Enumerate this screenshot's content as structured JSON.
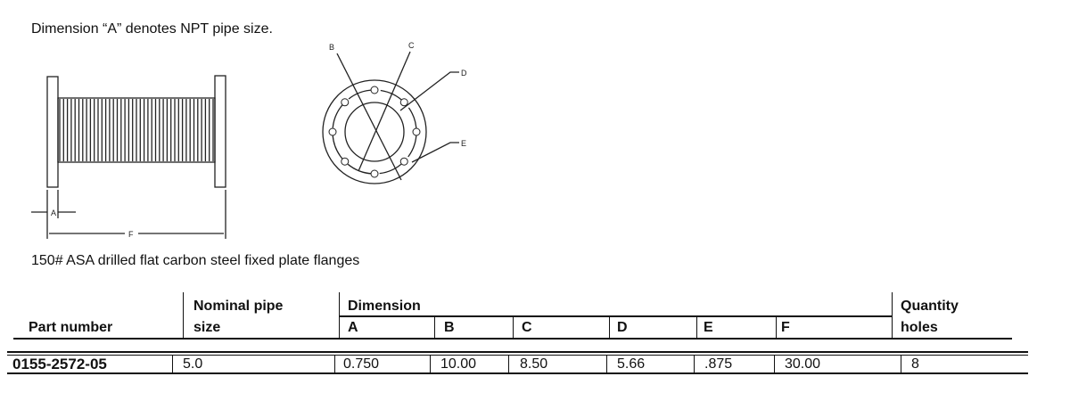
{
  "note": "Dimension “A” denotes NPT pipe size.",
  "drawing_labels": {
    "A": "A",
    "B": "B",
    "C": "C",
    "D": "D",
    "E": "E",
    "F": "F"
  },
  "caption": "150# ASA drilled flat carbon steel fixed plate flanges",
  "table": {
    "headers": {
      "part_number": "Part number",
      "nominal_line1": "Nominal pipe",
      "nominal_line2": "size",
      "dimension": "Dimension",
      "dims": [
        "A",
        "B",
        "C",
        "D",
        "E",
        "F"
      ],
      "qty_line1": "Quantity",
      "qty_line2": "holes"
    },
    "rows": [
      {
        "part_number": "0155-2572-05",
        "nominal": "5.0",
        "dims": [
          "0.750",
          "10.00",
          "8.50",
          "5.66",
          ".875",
          "30.00"
        ],
        "holes": "8"
      }
    ]
  }
}
